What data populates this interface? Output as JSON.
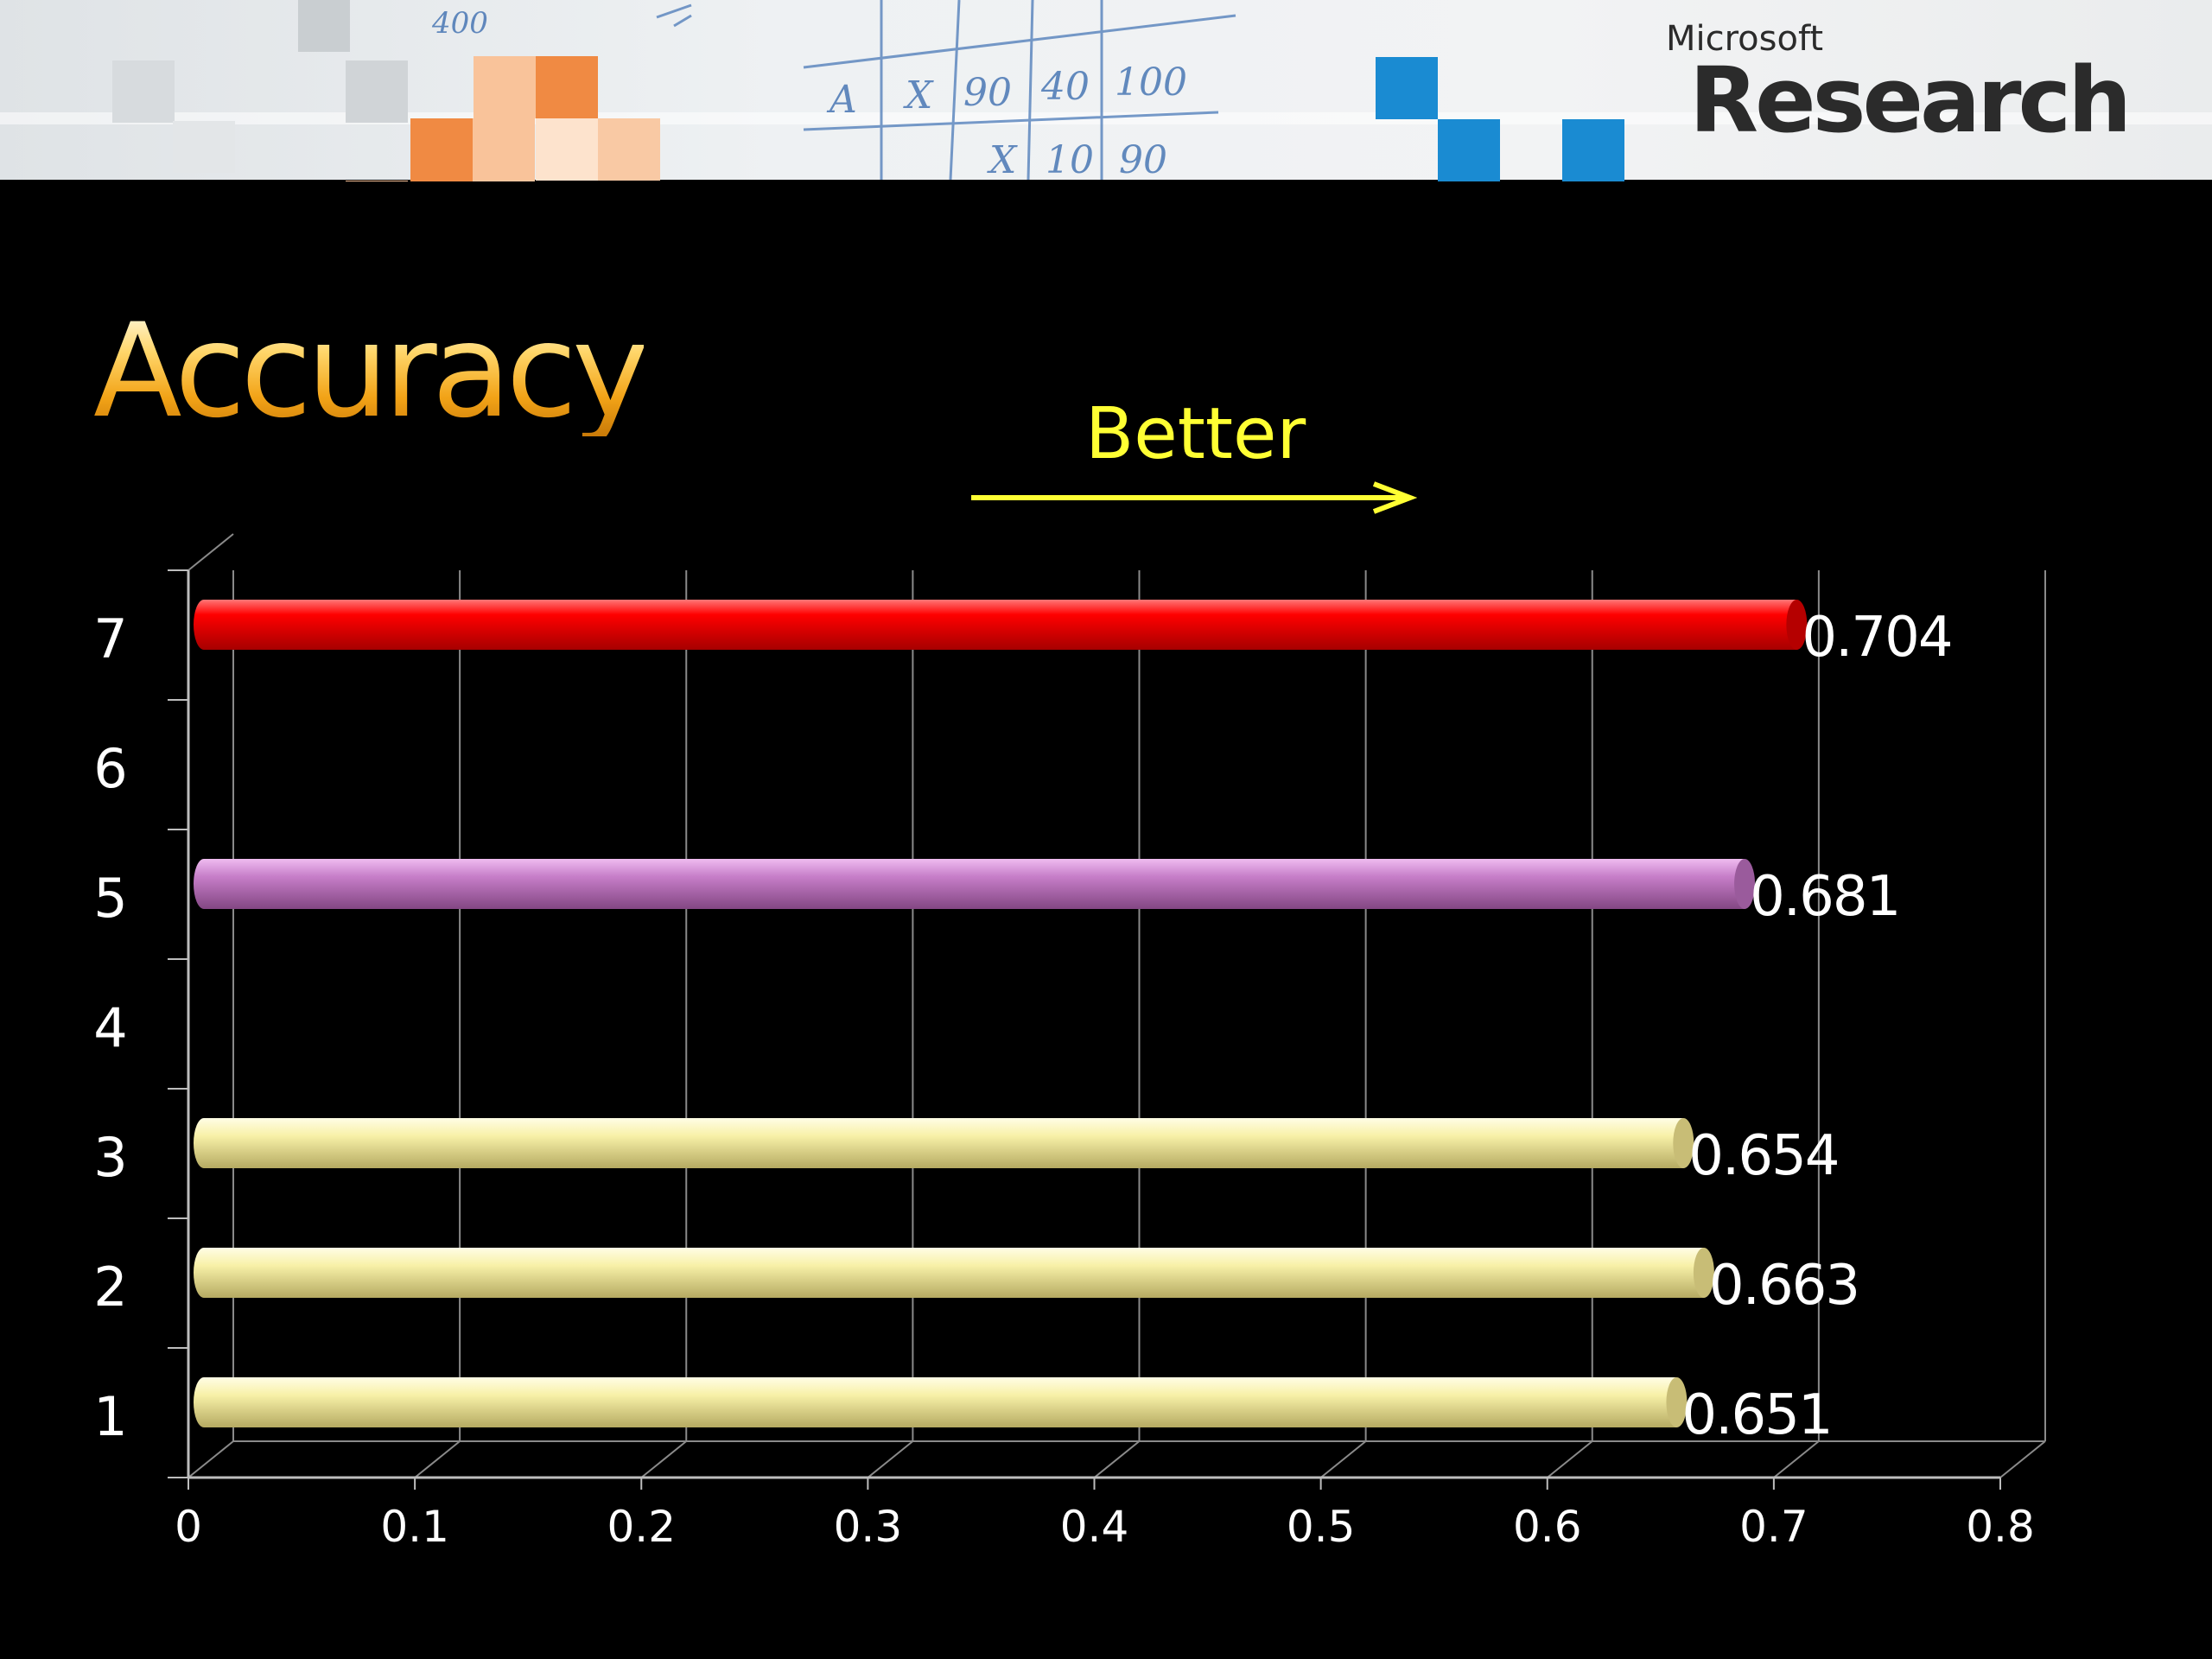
{
  "header": {
    "brand_small": "Microsoft",
    "brand_big": "Research",
    "whiteboard_marks": [
      "A",
      "X",
      "90",
      "40",
      "100",
      "X",
      "10",
      "90",
      "400"
    ]
  },
  "slide": {
    "title": "Accuracy",
    "direction_label": "Better"
  },
  "colors": {
    "red": "#ff0000",
    "purple": "#c77ec9",
    "cream": "#f8f1a8",
    "title_gold": "#f3b22a",
    "better_yellow": "#ffff33",
    "brand_blue": "#1a8bd2",
    "brand_orange": "#f08a43"
  },
  "chart_data": {
    "type": "bar",
    "orientation": "horizontal",
    "title": "",
    "xlabel": "",
    "ylabel": "",
    "categories": [
      "1",
      "2",
      "3",
      "4",
      "5",
      "6",
      "7"
    ],
    "values": [
      0.651,
      0.663,
      0.654,
      null,
      0.681,
      null,
      0.704
    ],
    "data_labels": [
      "0.651",
      "0.663",
      "0.654",
      "",
      "0.681",
      "",
      "0.704"
    ],
    "bar_colors": [
      "#f8f1a8",
      "#f8f1a8",
      "#f8f1a8",
      null,
      "#c77ec9",
      null,
      "#ff0000"
    ],
    "xlim": [
      0,
      0.8
    ],
    "xticks": [
      "0",
      "0.1",
      "0.2",
      "0.3",
      "0.4",
      "0.5",
      "0.6",
      "0.7",
      "0.8"
    ],
    "grid": "vertical",
    "legend": "none"
  }
}
